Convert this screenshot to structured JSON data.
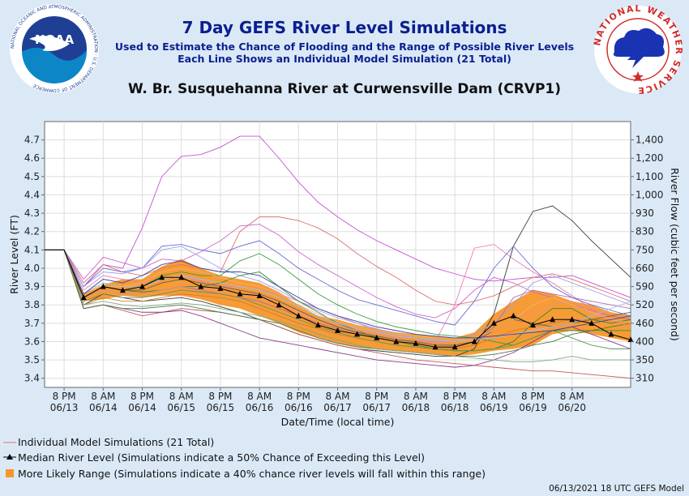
{
  "header": {
    "title": "7 Day GEFS River Level Simulations",
    "subtitle1": "Used to Estimate the Chance of Flooding and the Range of Possible River Levels",
    "subtitle2": "Each Line Shows an Individual Model Simulation (21 Total)",
    "location": "W. Br. Susquehanna River at Curwensville Dam (CRVP1)",
    "noaa_logo_text": "NOAA",
    "noaa_ring_text": "NATIONAL OCEANIC AND ATMOSPHERIC ADMINISTRATION · U.S. DEPARTMENT OF COMMERCE",
    "nws_ring_text": "NATIONAL WEATHER SERVICE"
  },
  "legend": {
    "individual": "Individual Model Simulations (21 Total)",
    "median": "Median River Level (Simulations indicate a 50% Chance of Exceeding this Level)",
    "range": "More Likely Range (Simulations indicate a 40% chance river levels will fall within this range)"
  },
  "footer": "06/13/2021 18 UTC GEFS Model",
  "colors": {
    "background": "#dbe9f7",
    "title": "#0b1f8f",
    "range_fill": "#f7962a",
    "median": "#000000"
  },
  "chart_data": {
    "type": "line",
    "ylabel": "River Level (FT)",
    "y2label": "River Flow (cubic feet per second)",
    "xlabel": "Date/Time (local time)",
    "ylim": [
      3.35,
      4.8
    ],
    "grid": true,
    "yticks": [
      3.4,
      3.5,
      3.6,
      3.7,
      3.8,
      3.9,
      4.0,
      4.1,
      4.2,
      4.3,
      4.4,
      4.5,
      4.6,
      4.7
    ],
    "y2ticks": [
      {
        "level": 3.4,
        "label": "310"
      },
      {
        "level": 3.5,
        "label": "350"
      },
      {
        "level": 3.6,
        "label": "400"
      },
      {
        "level": 3.7,
        "label": "460"
      },
      {
        "level": 3.8,
        "label": "520"
      },
      {
        "level": 3.9,
        "label": "590"
      },
      {
        "level": 4.0,
        "label": "660"
      },
      {
        "level": 4.1,
        "label": "750"
      },
      {
        "level": 4.2,
        "label": "830"
      },
      {
        "level": 4.3,
        "label": "930"
      },
      {
        "level": 4.4,
        "label": "1,000"
      },
      {
        "level": 4.5,
        "label": "1,100"
      },
      {
        "level": 4.6,
        "label": "1,200"
      },
      {
        "level": 4.7,
        "label": "1,400"
      }
    ],
    "xrange": [
      -0.5,
      14.5
    ],
    "xticks": [
      {
        "x": 0,
        "time": "8 PM",
        "date": "06/13"
      },
      {
        "x": 1,
        "time": "8 AM",
        "date": "06/14"
      },
      {
        "x": 2,
        "time": "8 PM",
        "date": "06/14"
      },
      {
        "x": 3,
        "time": "8 AM",
        "date": "06/15"
      },
      {
        "x": 4,
        "time": "8 PM",
        "date": "06/15"
      },
      {
        "x": 5,
        "time": "8 AM",
        "date": "06/16"
      },
      {
        "x": 6,
        "time": "8 PM",
        "date": "06/16"
      },
      {
        "x": 7,
        "time": "8 AM",
        "date": "06/17"
      },
      {
        "x": 8,
        "time": "8 PM",
        "date": "06/17"
      },
      {
        "x": 9,
        "time": "8 AM",
        "date": "06/18"
      },
      {
        "x": 10,
        "time": "8 PM",
        "date": "06/18"
      },
      {
        "x": 11,
        "time": "8 AM",
        "date": "06/19"
      },
      {
        "x": 12,
        "time": "8 PM",
        "date": "06/19"
      },
      {
        "x": 13,
        "time": "8 AM",
        "date": "06/20"
      }
    ],
    "ensemble_x": [
      -0.5,
      0,
      0.5,
      1,
      1.5,
      2,
      2.5,
      3,
      3.5,
      4,
      4.5,
      5,
      5.5,
      6,
      6.5,
      7,
      7.5,
      8,
      8.5,
      9,
      9.5,
      10,
      10.5,
      11,
      11.5,
      12,
      12.5,
      13,
      13.5,
      14,
      14.5
    ],
    "range": {
      "upper": [
        4.1,
        4.1,
        3.86,
        3.91,
        3.94,
        3.94,
        4.01,
        4.05,
        4.0,
        3.96,
        3.94,
        3.92,
        3.87,
        3.8,
        3.74,
        3.72,
        3.69,
        3.67,
        3.65,
        3.64,
        3.63,
        3.62,
        3.65,
        3.75,
        3.82,
        3.88,
        3.86,
        3.82,
        3.8,
        3.76,
        3.74
      ],
      "lower": [
        4.1,
        4.1,
        3.82,
        3.83,
        3.85,
        3.84,
        3.85,
        3.85,
        3.83,
        3.8,
        3.78,
        3.74,
        3.7,
        3.65,
        3.62,
        3.59,
        3.57,
        3.56,
        3.55,
        3.54,
        3.53,
        3.52,
        3.53,
        3.55,
        3.56,
        3.58,
        3.64,
        3.66,
        3.64,
        3.62,
        3.6
      ]
    },
    "median": {
      "x": [
        -0.5,
        0,
        0.5,
        1,
        1.5,
        2,
        2.5,
        3,
        3.5,
        4,
        4.5,
        5,
        5.5,
        6,
        6.5,
        7,
        7.5,
        8,
        8.5,
        9,
        9.5,
        10,
        10.5,
        11,
        11.5,
        12,
        12.5,
        13,
        13.5,
        14,
        14.5
      ],
      "y": [
        4.1,
        4.1,
        3.84,
        3.9,
        3.88,
        3.9,
        3.95,
        3.95,
        3.9,
        3.89,
        3.86,
        3.85,
        3.8,
        3.74,
        3.69,
        3.66,
        3.64,
        3.62,
        3.6,
        3.59,
        3.57,
        3.57,
        3.6,
        3.7,
        3.74,
        3.69,
        3.72,
        3.72,
        3.7,
        3.64,
        3.61
      ]
    },
    "series": [
      {
        "color": "#c552d4",
        "values": [
          4.1,
          4.1,
          3.9,
          4.02,
          4.0,
          4.22,
          4.5,
          4.61,
          4.62,
          4.66,
          4.72,
          4.72,
          4.6,
          4.47,
          4.36,
          4.28,
          4.21,
          4.15,
          4.1,
          4.05,
          4.0,
          3.97,
          3.94,
          3.93,
          3.94,
          3.95,
          3.95,
          3.96,
          3.92,
          3.88,
          3.84
        ]
      },
      {
        "color": "#cc66cc",
        "values": [
          4.1,
          4.1,
          3.94,
          4.06,
          4.03,
          4.0,
          4.05,
          4.04,
          4.09,
          4.15,
          4.23,
          4.24,
          4.18,
          4.09,
          4.02,
          3.96,
          3.9,
          3.84,
          3.79,
          3.75,
          3.73,
          3.78,
          3.88,
          3.95,
          3.92,
          3.87,
          3.84,
          3.8,
          3.77,
          3.74,
          3.72
        ]
      },
      {
        "color": "#e07070",
        "values": [
          4.1,
          4.1,
          3.92,
          4.02,
          3.98,
          3.96,
          4.0,
          4.02,
          4.0,
          3.98,
          4.2,
          4.28,
          4.28,
          4.26,
          4.22,
          4.16,
          4.08,
          4.01,
          3.95,
          3.88,
          3.82,
          3.8,
          3.82,
          3.85,
          3.9,
          3.95,
          3.97,
          3.94,
          3.9,
          3.86,
          3.82
        ]
      },
      {
        "color": "#ea7fb5",
        "values": [
          4.1,
          4.1,
          3.88,
          3.96,
          3.94,
          3.92,
          3.94,
          3.96,
          3.93,
          3.9,
          3.9,
          3.88,
          3.86,
          3.82,
          3.78,
          3.74,
          3.7,
          3.66,
          3.62,
          3.6,
          3.6,
          3.8,
          4.11,
          4.13,
          4.05,
          3.98,
          3.92,
          3.85,
          3.78,
          3.72,
          3.68
        ]
      },
      {
        "color": "#3a3a3a",
        "values": [
          4.1,
          4.1,
          3.8,
          3.86,
          3.84,
          3.82,
          3.83,
          3.84,
          3.82,
          3.79,
          3.76,
          3.72,
          3.68,
          3.64,
          3.61,
          3.58,
          3.56,
          3.55,
          3.54,
          3.53,
          3.52,
          3.52,
          3.56,
          3.75,
          4.12,
          4.31,
          4.34,
          4.26,
          4.15,
          4.05,
          3.95
        ]
      },
      {
        "color": "#6b6bd6",
        "values": [
          4.1,
          4.1,
          3.9,
          4.0,
          3.98,
          4.0,
          4.12,
          4.13,
          4.1,
          4.08,
          4.12,
          4.15,
          4.08,
          4.0,
          3.94,
          3.88,
          3.83,
          3.8,
          3.77,
          3.74,
          3.71,
          3.69,
          3.82,
          4.0,
          4.12,
          4.0,
          3.9,
          3.84,
          3.8,
          3.77,
          3.74
        ]
      },
      {
        "color": "#9aa3e8",
        "values": [
          4.1,
          4.1,
          3.9,
          3.98,
          3.97,
          4.0,
          4.1,
          4.12,
          4.06,
          4.0,
          3.96,
          3.93,
          3.88,
          3.82,
          3.77,
          3.73,
          3.7,
          3.67,
          3.64,
          3.62,
          3.6,
          3.6,
          3.64,
          3.7,
          3.8,
          3.92,
          3.96,
          3.92,
          3.88,
          3.84,
          3.8
        ]
      },
      {
        "color": "#3e9a3e",
        "values": [
          4.1,
          4.1,
          3.86,
          3.92,
          3.9,
          3.9,
          3.96,
          3.98,
          3.96,
          3.96,
          4.04,
          4.08,
          4.02,
          3.94,
          3.86,
          3.8,
          3.75,
          3.71,
          3.68,
          3.66,
          3.64,
          3.63,
          3.62,
          3.6,
          3.58,
          3.62,
          3.66,
          3.66,
          3.66,
          3.66,
          3.66
        ]
      },
      {
        "color": "#2f8a2f",
        "values": [
          4.1,
          4.1,
          3.84,
          3.9,
          3.88,
          3.87,
          3.88,
          3.9,
          3.9,
          3.92,
          3.96,
          3.98,
          3.9,
          3.82,
          3.76,
          3.7,
          3.66,
          3.62,
          3.6,
          3.58,
          3.56,
          3.55,
          3.55,
          3.56,
          3.6,
          3.7,
          3.78,
          3.78,
          3.72,
          3.7,
          3.72
        ]
      },
      {
        "color": "#c05a5a",
        "values": [
          4.1,
          4.1,
          3.78,
          3.8,
          3.77,
          3.74,
          3.76,
          3.78,
          3.77,
          3.76,
          3.74,
          3.72,
          3.68,
          3.64,
          3.61,
          3.58,
          3.56,
          3.54,
          3.52,
          3.5,
          3.49,
          3.48,
          3.47,
          3.46,
          3.45,
          3.44,
          3.44,
          3.43,
          3.42,
          3.41,
          3.4
        ]
      },
      {
        "color": "#8b3a8b",
        "values": [
          4.1,
          4.1,
          3.78,
          3.8,
          3.78,
          3.76,
          3.76,
          3.77,
          3.74,
          3.7,
          3.66,
          3.62,
          3.6,
          3.58,
          3.56,
          3.54,
          3.52,
          3.5,
          3.49,
          3.48,
          3.47,
          3.46,
          3.47,
          3.5,
          3.54,
          3.6,
          3.66,
          3.68,
          3.64,
          3.6,
          3.56
        ]
      },
      {
        "color": "#4a7a4a",
        "values": [
          4.1,
          4.1,
          3.78,
          3.8,
          3.78,
          3.78,
          3.79,
          3.8,
          3.78,
          3.76,
          3.74,
          3.72,
          3.7,
          3.66,
          3.62,
          3.59,
          3.57,
          3.56,
          3.55,
          3.54,
          3.53,
          3.52,
          3.52,
          3.53,
          3.55,
          3.58,
          3.6,
          3.64,
          3.66,
          3.68,
          3.7
        ]
      },
      {
        "color": "#7fa87f",
        "values": [
          4.1,
          4.1,
          3.8,
          3.82,
          3.8,
          3.79,
          3.8,
          3.81,
          3.8,
          3.78,
          3.76,
          3.74,
          3.71,
          3.68,
          3.64,
          3.61,
          3.58,
          3.56,
          3.55,
          3.54,
          3.53,
          3.52,
          3.51,
          3.5,
          3.49,
          3.49,
          3.5,
          3.52,
          3.5,
          3.5,
          3.5
        ]
      },
      {
        "color": "#d07a3a",
        "values": [
          4.1,
          4.1,
          3.8,
          3.84,
          3.82,
          3.82,
          3.84,
          3.86,
          3.85,
          3.84,
          3.82,
          3.78,
          3.74,
          3.7,
          3.67,
          3.64,
          3.62,
          3.6,
          3.58,
          3.57,
          3.56,
          3.56,
          3.58,
          3.62,
          3.66,
          3.68,
          3.7,
          3.72,
          3.72,
          3.72,
          3.7
        ]
      },
      {
        "color": "#b06ab0",
        "values": [
          4.1,
          4.1,
          3.84,
          3.88,
          3.86,
          3.86,
          3.88,
          3.9,
          3.88,
          3.86,
          3.84,
          3.82,
          3.78,
          3.74,
          3.7,
          3.67,
          3.65,
          3.63,
          3.61,
          3.6,
          3.59,
          3.58,
          3.6,
          3.68,
          3.84,
          3.88,
          3.86,
          3.84,
          3.82,
          3.8,
          3.78
        ]
      },
      {
        "color": "#5a9a5a",
        "values": [
          4.1,
          4.1,
          3.82,
          3.86,
          3.84,
          3.84,
          3.86,
          3.88,
          3.87,
          3.86,
          3.84,
          3.8,
          3.76,
          3.72,
          3.68,
          3.65,
          3.62,
          3.6,
          3.58,
          3.57,
          3.56,
          3.55,
          3.55,
          3.56,
          3.58,
          3.62,
          3.66,
          3.62,
          3.58,
          3.56,
          3.56
        ]
      },
      {
        "color": "#e89090",
        "values": [
          4.1,
          4.1,
          3.84,
          3.88,
          3.86,
          3.86,
          3.88,
          3.9,
          3.89,
          3.88,
          3.86,
          3.84,
          3.8,
          3.76,
          3.72,
          3.69,
          3.66,
          3.64,
          3.62,
          3.6,
          3.59,
          3.58,
          3.6,
          3.66,
          3.72,
          3.76,
          3.8,
          3.82,
          3.76,
          3.72,
          3.68
        ]
      },
      {
        "color": "#606060",
        "values": [
          4.1,
          4.1,
          3.84,
          3.9,
          3.88,
          3.88,
          3.92,
          3.94,
          3.92,
          3.9,
          3.88,
          3.86,
          3.82,
          3.77,
          3.72,
          3.68,
          3.65,
          3.63,
          3.61,
          3.6,
          3.58,
          3.58,
          3.6,
          3.66,
          3.72,
          3.7,
          3.68,
          3.7,
          3.72,
          3.74,
          3.76
        ]
      },
      {
        "color": "#a0c0f0",
        "values": [
          4.1,
          4.1,
          3.86,
          3.92,
          3.9,
          3.9,
          3.94,
          3.96,
          3.94,
          3.92,
          3.9,
          3.88,
          3.84,
          3.79,
          3.74,
          3.7,
          3.67,
          3.65,
          3.63,
          3.62,
          3.61,
          3.6,
          3.61,
          3.62,
          3.64,
          3.66,
          3.68,
          3.7,
          3.74,
          3.78,
          3.82
        ]
      },
      {
        "color": "#f0b070",
        "values": [
          4.1,
          4.1,
          3.84,
          3.9,
          3.9,
          3.92,
          3.98,
          4.0,
          3.98,
          3.95,
          3.92,
          3.9,
          3.86,
          3.8,
          3.75,
          3.71,
          3.68,
          3.66,
          3.64,
          3.63,
          3.62,
          3.61,
          3.62,
          3.66,
          3.72,
          3.8,
          3.84,
          3.8,
          3.76,
          3.72,
          3.7
        ]
      },
      {
        "color": "#4040a0",
        "values": [
          4.1,
          4.1,
          3.86,
          3.94,
          3.92,
          3.96,
          4.02,
          4.04,
          4.0,
          3.98,
          3.98,
          3.96,
          3.9,
          3.84,
          3.78,
          3.74,
          3.71,
          3.68,
          3.66,
          3.64,
          3.63,
          3.62,
          3.62,
          3.63,
          3.64,
          3.65,
          3.66,
          3.68,
          3.7,
          3.72,
          3.74
        ]
      }
    ]
  }
}
